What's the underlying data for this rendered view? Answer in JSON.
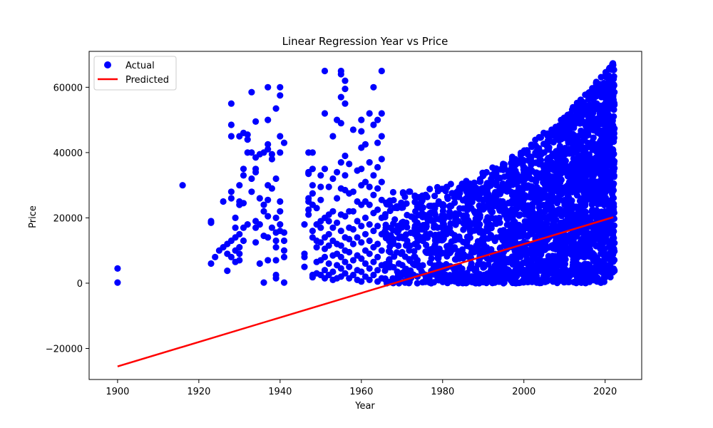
{
  "chart_data": {
    "type": "scatter",
    "title": "Linear Regression Year vs Price",
    "xlabel": "Year",
    "ylabel": "Price",
    "xlim": [
      1893,
      2029
    ],
    "ylim": [
      -29500,
      71000
    ],
    "x_ticks": [
      1900,
      1920,
      1940,
      1960,
      1980,
      2000,
      2020
    ],
    "y_ticks": [
      -20000,
      0,
      20000,
      40000,
      60000
    ],
    "y_tick_labels": [
      "−20000",
      "0",
      "20000",
      "40000",
      "60000"
    ],
    "grid": false,
    "legend_position": "upper-left",
    "series": [
      {
        "name": "Actual",
        "kind": "scatter",
        "color": "#0000ff",
        "points": [
          [
            1900,
            4500
          ],
          [
            1900,
            200
          ],
          [
            1916,
            30000
          ],
          [
            1923,
            6000
          ],
          [
            1923,
            18500
          ],
          [
            1923,
            19000
          ],
          [
            1924,
            8000
          ],
          [
            1925,
            10000
          ],
          [
            1926,
            11000
          ],
          [
            1926,
            25000
          ],
          [
            1927,
            3800
          ],
          [
            1927,
            9000
          ],
          [
            1927,
            12000
          ],
          [
            1928,
            8000
          ],
          [
            1928,
            13000
          ],
          [
            1928,
            26000
          ],
          [
            1928,
            28000
          ],
          [
            1928,
            45000
          ],
          [
            1928,
            48500
          ],
          [
            1928,
            55000
          ],
          [
            1929,
            6500
          ],
          [
            1929,
            10000
          ],
          [
            1929,
            14000
          ],
          [
            1929,
            17000
          ],
          [
            1929,
            20000
          ],
          [
            1930,
            7000
          ],
          [
            1930,
            9000
          ],
          [
            1930,
            11000
          ],
          [
            1930,
            15000
          ],
          [
            1930,
            24000
          ],
          [
            1930,
            25000
          ],
          [
            1930,
            30000
          ],
          [
            1930,
            45000
          ],
          [
            1931,
            13000
          ],
          [
            1931,
            17000
          ],
          [
            1931,
            24500
          ],
          [
            1931,
            33000
          ],
          [
            1931,
            35000
          ],
          [
            1931,
            46000
          ],
          [
            1932,
            18000
          ],
          [
            1932,
            40000
          ],
          [
            1932,
            44000
          ],
          [
            1932,
            45500
          ],
          [
            1933,
            28000
          ],
          [
            1933,
            32000
          ],
          [
            1933,
            40000
          ],
          [
            1933,
            58500
          ],
          [
            1934,
            12500
          ],
          [
            1934,
            17000
          ],
          [
            1934,
            19000
          ],
          [
            1934,
            34000
          ],
          [
            1934,
            35000
          ],
          [
            1934,
            38500
          ],
          [
            1934,
            49500
          ],
          [
            1935,
            6000
          ],
          [
            1935,
            18000
          ],
          [
            1935,
            26000
          ],
          [
            1935,
            39500
          ],
          [
            1936,
            200
          ],
          [
            1936,
            14500
          ],
          [
            1936,
            22000
          ],
          [
            1936,
            24000
          ],
          [
            1936,
            40000
          ],
          [
            1937,
            7000
          ],
          [
            1937,
            14000
          ],
          [
            1937,
            20500
          ],
          [
            1937,
            25500
          ],
          [
            1937,
            30000
          ],
          [
            1937,
            41000
          ],
          [
            1937,
            42500
          ],
          [
            1937,
            50000
          ],
          [
            1937,
            60000
          ],
          [
            1938,
            17000
          ],
          [
            1938,
            29000
          ],
          [
            1938,
            38000
          ],
          [
            1938,
            39500
          ],
          [
            1939,
            1500
          ],
          [
            1939,
            2500
          ],
          [
            1939,
            7000
          ],
          [
            1939,
            11000
          ],
          [
            1939,
            13000
          ],
          [
            1939,
            15500
          ],
          [
            1939,
            20000
          ],
          [
            1939,
            32000
          ],
          [
            1939,
            53500
          ],
          [
            1940,
            16000
          ],
          [
            1940,
            18000
          ],
          [
            1940,
            22000
          ],
          [
            1940,
            25000
          ],
          [
            1940,
            40000
          ],
          [
            1940,
            45000
          ],
          [
            1940,
            57500
          ],
          [
            1940,
            60000
          ],
          [
            1941,
            200
          ],
          [
            1941,
            8000
          ],
          [
            1941,
            10000
          ],
          [
            1941,
            13000
          ],
          [
            1941,
            15500
          ],
          [
            1941,
            43000
          ],
          [
            1946,
            18000
          ],
          [
            1946,
            5000
          ],
          [
            1946,
            8000
          ],
          [
            1946,
            9000
          ],
          [
            1947,
            21000
          ],
          [
            1947,
            22500
          ],
          [
            1947,
            25000
          ],
          [
            1947,
            26000
          ],
          [
            1947,
            33500
          ],
          [
            1947,
            34000
          ],
          [
            1947,
            40000
          ],
          [
            1948,
            1800
          ],
          [
            1948,
            2500
          ],
          [
            1948,
            14000
          ],
          [
            1948,
            16000
          ],
          [
            1948,
            24000
          ],
          [
            1948,
            27500
          ],
          [
            1948,
            30000
          ],
          [
            1948,
            35000
          ],
          [
            1948,
            40000
          ],
          [
            1949,
            3000
          ],
          [
            1949,
            6500
          ],
          [
            1949,
            11000
          ],
          [
            1949,
            13000
          ],
          [
            1949,
            18000
          ],
          [
            1949,
            23000
          ],
          [
            1950,
            2500
          ],
          [
            1950,
            7000
          ],
          [
            1950,
            12500
          ],
          [
            1950,
            17000
          ],
          [
            1950,
            19000
          ],
          [
            1950,
            25500
          ],
          [
            1950,
            29500
          ],
          [
            1950,
            33000
          ],
          [
            1951,
            1500
          ],
          [
            1951,
            4000
          ],
          [
            1951,
            8000
          ],
          [
            1951,
            10500
          ],
          [
            1951,
            14000
          ],
          [
            1951,
            20000
          ],
          [
            1951,
            35000
          ],
          [
            1951,
            52000
          ],
          [
            1951,
            65000
          ],
          [
            1952,
            2500
          ],
          [
            1952,
            6000
          ],
          [
            1952,
            11500
          ],
          [
            1952,
            15000
          ],
          [
            1952,
            19000
          ],
          [
            1952,
            21000
          ],
          [
            1952,
            29500
          ],
          [
            1953,
            1000
          ],
          [
            1953,
            3500
          ],
          [
            1953,
            8500
          ],
          [
            1953,
            13000
          ],
          [
            1953,
            17000
          ],
          [
            1953,
            22000
          ],
          [
            1953,
            32000
          ],
          [
            1953,
            45000
          ],
          [
            1954,
            1500
          ],
          [
            1954,
            5500
          ],
          [
            1954,
            9000
          ],
          [
            1954,
            12000
          ],
          [
            1954,
            18500
          ],
          [
            1954,
            26000
          ],
          [
            1954,
            34000
          ],
          [
            1954,
            50000
          ],
          [
            1955,
            2000
          ],
          [
            1955,
            4500
          ],
          [
            1955,
            8000
          ],
          [
            1955,
            11500
          ],
          [
            1955,
            16000
          ],
          [
            1955,
            21000
          ],
          [
            1955,
            29000
          ],
          [
            1955,
            37000
          ],
          [
            1955,
            49000
          ],
          [
            1955,
            57000
          ],
          [
            1955,
            64000
          ],
          [
            1955,
            65000
          ],
          [
            1956,
            3000
          ],
          [
            1956,
            6500
          ],
          [
            1956,
            10000
          ],
          [
            1956,
            14000
          ],
          [
            1956,
            20500
          ],
          [
            1956,
            28500
          ],
          [
            1956,
            33000
          ],
          [
            1956,
            39000
          ],
          [
            1956,
            55000
          ],
          [
            1956,
            59500
          ],
          [
            1956,
            62000
          ],
          [
            1957,
            1500
          ],
          [
            1957,
            5000
          ],
          [
            1957,
            9500
          ],
          [
            1957,
            13500
          ],
          [
            1957,
            17000
          ],
          [
            1957,
            22000
          ],
          [
            1957,
            27500
          ],
          [
            1957,
            36500
          ],
          [
            1958,
            2500
          ],
          [
            1958,
            7000
          ],
          [
            1958,
            12000
          ],
          [
            1958,
            16500
          ],
          [
            1958,
            22000
          ],
          [
            1958,
            28000
          ],
          [
            1958,
            47000
          ],
          [
            1959,
            1000
          ],
          [
            1959,
            4000
          ],
          [
            1959,
            8500
          ],
          [
            1959,
            14000
          ],
          [
            1959,
            19000
          ],
          [
            1959,
            25000
          ],
          [
            1959,
            34500
          ],
          [
            1960,
            500
          ],
          [
            1960,
            3500
          ],
          [
            1960,
            7500
          ],
          [
            1960,
            12500
          ],
          [
            1960,
            17500
          ],
          [
            1960,
            24000
          ],
          [
            1960,
            30000
          ],
          [
            1960,
            35000
          ],
          [
            1960,
            41500
          ],
          [
            1960,
            46500
          ],
          [
            1960,
            50000
          ],
          [
            1961,
            2000
          ],
          [
            1961,
            6000
          ],
          [
            1961,
            10000
          ],
          [
            1961,
            15000
          ],
          [
            1961,
            20000
          ],
          [
            1961,
            25000
          ],
          [
            1961,
            31000
          ],
          [
            1961,
            42500
          ],
          [
            1962,
            1000
          ],
          [
            1962,
            4500
          ],
          [
            1962,
            9000
          ],
          [
            1962,
            13000
          ],
          [
            1962,
            18000
          ],
          [
            1962,
            24000
          ],
          [
            1962,
            29500
          ],
          [
            1962,
            37000
          ],
          [
            1962,
            52000
          ],
          [
            1963,
            2500
          ],
          [
            1963,
            6500
          ],
          [
            1963,
            11000
          ],
          [
            1963,
            16000
          ],
          [
            1963,
            21500
          ],
          [
            1963,
            27000
          ],
          [
            1963,
            33000
          ],
          [
            1963,
            48500
          ],
          [
            1963,
            60000
          ],
          [
            1964,
            500
          ],
          [
            1964,
            4000
          ],
          [
            1964,
            8000
          ],
          [
            1964,
            12000
          ],
          [
            1964,
            17500
          ],
          [
            1964,
            22500
          ],
          [
            1964,
            29000
          ],
          [
            1964,
            35500
          ],
          [
            1964,
            43000
          ],
          [
            1964,
            50000
          ],
          [
            1965,
            1500
          ],
          [
            1965,
            5500
          ],
          [
            1965,
            10000
          ],
          [
            1965,
            15000
          ],
          [
            1965,
            20000
          ],
          [
            1965,
            25500
          ],
          [
            1965,
            31000
          ],
          [
            1965,
            38000
          ],
          [
            1965,
            45000
          ],
          [
            1965,
            52000
          ],
          [
            1965,
            65000
          ]
        ]
      },
      {
        "name": "Predicted",
        "kind": "line",
        "color": "#ff0000",
        "points": [
          [
            1900,
            -25500
          ],
          [
            2022,
            20200
          ]
        ]
      }
    ]
  }
}
